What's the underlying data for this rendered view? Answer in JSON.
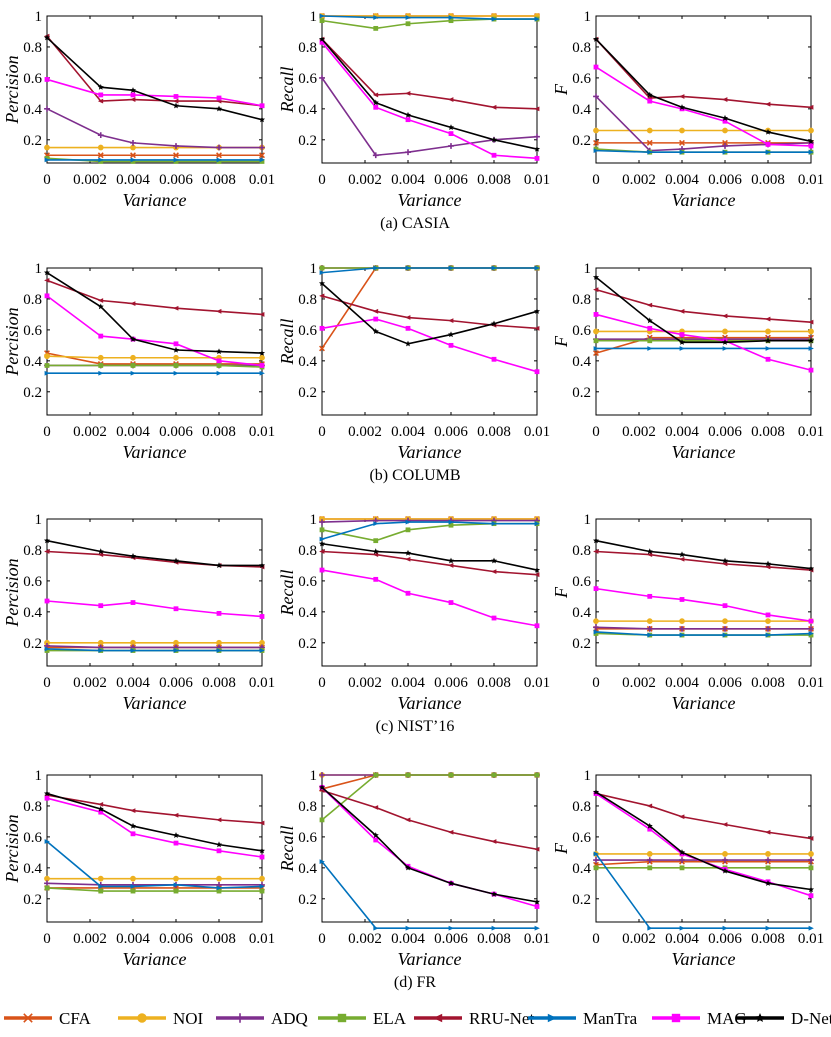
{
  "x": [
    0,
    0.0025,
    0.004,
    0.006,
    0.008,
    0.01
  ],
  "x_ticks": [
    0,
    0.002,
    0.004,
    0.006,
    0.008,
    0.01
  ],
  "x_tick_labels": [
    "0",
    "0.002",
    "0.004",
    "0.006",
    "0.008",
    "0.01"
  ],
  "y_ticks": [
    0.2,
    0.4,
    0.6,
    0.8,
    1
  ],
  "y_tick_labels": [
    "0.2",
    "0.4",
    "0.6",
    "0.8",
    "1"
  ],
  "x_label": "Variance",
  "y_labels": [
    "Percision",
    "Recall",
    "F"
  ],
  "legend": {
    "items": [
      {
        "name": "CFA",
        "color": "#D95319",
        "marker": "x"
      },
      {
        "name": "NOI",
        "color": "#EDB120",
        "marker": "o"
      },
      {
        "name": "ADQ",
        "color": "#7E2F8E",
        "marker": "+"
      },
      {
        "name": "ELA",
        "color": "#77AC30",
        "marker": "s"
      },
      {
        "name": "RRU-Net",
        "color": "#A2142F",
        "marker": "<"
      },
      {
        "name": "ManTra",
        "color": "#0072BD",
        "marker": ">"
      },
      {
        "name": "MAG",
        "color": "#FF00FF",
        "marker": "s"
      },
      {
        "name": "D-Net",
        "color": "#000000",
        "marker": "*"
      }
    ]
  },
  "chart_data": [
    {
      "caption": "(a) CASIA",
      "type": "line",
      "ylim": [
        0.05,
        1
      ],
      "panels": [
        {
          "ylabel": "Percision",
          "series": [
            [
              0.1,
              0.1,
              0.1,
              0.1,
              0.1,
              0.1
            ],
            [
              0.15,
              0.15,
              0.15,
              0.15,
              0.15,
              0.15
            ],
            [
              0.4,
              0.23,
              0.18,
              0.16,
              0.15,
              0.15
            ],
            [
              0.08,
              0.06,
              0.06,
              0.06,
              0.06,
              0.06
            ],
            [
              0.87,
              0.45,
              0.46,
              0.45,
              0.45,
              0.42
            ],
            [
              0.07,
              0.07,
              0.07,
              0.07,
              0.07,
              0.07
            ],
            [
              0.59,
              0.49,
              0.49,
              0.48,
              0.47,
              0.42
            ],
            [
              0.86,
              0.54,
              0.52,
              0.42,
              0.4,
              0.33
            ]
          ]
        },
        {
          "ylabel": "Recall",
          "series": [
            [
              1.0,
              1.0,
              1.0,
              1.0,
              1.0,
              1.0
            ],
            [
              1.0,
              1.0,
              1.0,
              1.0,
              1.0,
              1.0
            ],
            [
              0.6,
              0.1,
              0.12,
              0.16,
              0.2,
              0.22
            ],
            [
              0.97,
              0.92,
              0.95,
              0.97,
              0.98,
              0.98
            ],
            [
              0.85,
              0.49,
              0.5,
              0.46,
              0.41,
              0.4
            ],
            [
              1.0,
              0.99,
              0.99,
              0.99,
              0.98,
              0.98
            ],
            [
              0.83,
              0.41,
              0.33,
              0.24,
              0.1,
              0.08
            ],
            [
              0.85,
              0.44,
              0.36,
              0.28,
              0.2,
              0.14
            ]
          ]
        },
        {
          "ylabel": "F",
          "series": [
            [
              0.18,
              0.18,
              0.18,
              0.18,
              0.18,
              0.18
            ],
            [
              0.26,
              0.26,
              0.26,
              0.26,
              0.26,
              0.26
            ],
            [
              0.48,
              0.13,
              0.14,
              0.16,
              0.17,
              0.18
            ],
            [
              0.14,
              0.12,
              0.12,
              0.12,
              0.12,
              0.12
            ],
            [
              0.85,
              0.47,
              0.48,
              0.46,
              0.43,
              0.41
            ],
            [
              0.13,
              0.12,
              0.12,
              0.12,
              0.12,
              0.12
            ],
            [
              0.67,
              0.45,
              0.4,
              0.32,
              0.17,
              0.16
            ],
            [
              0.85,
              0.49,
              0.41,
              0.34,
              0.25,
              0.19
            ]
          ]
        }
      ]
    },
    {
      "caption": "(b) COLUMB",
      "type": "line",
      "ylim": [
        0.05,
        1
      ],
      "panels": [
        {
          "ylabel": "Percision",
          "series": [
            [
              0.45,
              0.38,
              0.38,
              0.38,
              0.38,
              0.38
            ],
            [
              0.43,
              0.42,
              0.42,
              0.42,
              0.42,
              0.42
            ],
            [
              0.37,
              0.37,
              0.37,
              0.37,
              0.37,
              0.37
            ],
            [
              0.37,
              0.37,
              0.37,
              0.37,
              0.37,
              0.36
            ],
            [
              0.92,
              0.79,
              0.77,
              0.74,
              0.72,
              0.7
            ],
            [
              0.32,
              0.32,
              0.32,
              0.32,
              0.32,
              0.32
            ],
            [
              0.82,
              0.56,
              0.54,
              0.51,
              0.4,
              0.37
            ],
            [
              0.97,
              0.75,
              0.54,
              0.47,
              0.46,
              0.45
            ]
          ]
        },
        {
          "ylabel": "Recall",
          "series": [
            [
              0.48,
              1.0,
              1.0,
              1.0,
              1.0,
              1.0
            ],
            [
              1.0,
              1.0,
              1.0,
              1.0,
              1.0,
              1.0
            ],
            [
              1.0,
              1.0,
              1.0,
              1.0,
              1.0,
              1.0
            ],
            [
              1.0,
              1.0,
              1.0,
              1.0,
              1.0,
              1.0
            ],
            [
              0.82,
              0.72,
              0.68,
              0.66,
              0.63,
              0.61
            ],
            [
              0.97,
              1.0,
              1.0,
              1.0,
              1.0,
              1.0
            ],
            [
              0.61,
              0.67,
              0.61,
              0.5,
              0.41,
              0.33
            ],
            [
              0.9,
              0.59,
              0.51,
              0.57,
              0.64,
              0.72
            ]
          ]
        },
        {
          "ylabel": "F",
          "series": [
            [
              0.45,
              0.55,
              0.55,
              0.55,
              0.55,
              0.55
            ],
            [
              0.59,
              0.59,
              0.59,
              0.59,
              0.59,
              0.59
            ],
            [
              0.54,
              0.54,
              0.54,
              0.54,
              0.54,
              0.54
            ],
            [
              0.53,
              0.53,
              0.53,
              0.53,
              0.53,
              0.53
            ],
            [
              0.86,
              0.76,
              0.72,
              0.69,
              0.67,
              0.65
            ],
            [
              0.48,
              0.48,
              0.48,
              0.48,
              0.48,
              0.48
            ],
            [
              0.7,
              0.61,
              0.57,
              0.53,
              0.41,
              0.34
            ],
            [
              0.94,
              0.66,
              0.52,
              0.52,
              0.53,
              0.53
            ]
          ]
        }
      ]
    },
    {
      "caption": "(c) NIST’16",
      "type": "line",
      "ylim": [
        0.05,
        1
      ],
      "panels": [
        {
          "ylabel": "Percision",
          "series": [
            [
              0.17,
              0.17,
              0.17,
              0.17,
              0.17,
              0.17
            ],
            [
              0.2,
              0.2,
              0.2,
              0.2,
              0.2,
              0.2
            ],
            [
              0.18,
              0.17,
              0.17,
              0.17,
              0.17,
              0.17
            ],
            [
              0.15,
              0.15,
              0.15,
              0.15,
              0.15,
              0.15
            ],
            [
              0.79,
              0.77,
              0.75,
              0.72,
              0.7,
              0.69
            ],
            [
              0.16,
              0.15,
              0.15,
              0.15,
              0.15,
              0.15
            ],
            [
              0.47,
              0.44,
              0.46,
              0.42,
              0.39,
              0.37
            ],
            [
              0.86,
              0.79,
              0.76,
              0.73,
              0.7,
              0.7
            ]
          ]
        },
        {
          "ylabel": "Recall",
          "series": [
            [
              1.0,
              1.0,
              1.0,
              1.0,
              1.0,
              1.0
            ],
            [
              1.0,
              1.0,
              1.0,
              1.0,
              1.0,
              1.0
            ],
            [
              0.98,
              0.99,
              0.99,
              0.99,
              0.99,
              0.99
            ],
            [
              0.93,
              0.86,
              0.93,
              0.96,
              0.97,
              0.97
            ],
            [
              0.79,
              0.77,
              0.74,
              0.7,
              0.66,
              0.64
            ],
            [
              0.87,
              0.97,
              0.98,
              0.98,
              0.97,
              0.97
            ],
            [
              0.67,
              0.61,
              0.52,
              0.46,
              0.36,
              0.31
            ],
            [
              0.84,
              0.79,
              0.78,
              0.73,
              0.73,
              0.67
            ]
          ]
        },
        {
          "ylabel": "F",
          "series": [
            [
              0.29,
              0.29,
              0.29,
              0.29,
              0.29,
              0.29
            ],
            [
              0.34,
              0.34,
              0.34,
              0.34,
              0.34,
              0.34
            ],
            [
              0.3,
              0.29,
              0.29,
              0.29,
              0.29,
              0.29
            ],
            [
              0.26,
              0.25,
              0.25,
              0.25,
              0.25,
              0.25
            ],
            [
              0.79,
              0.77,
              0.74,
              0.71,
              0.69,
              0.67
            ],
            [
              0.27,
              0.25,
              0.25,
              0.25,
              0.25,
              0.26
            ],
            [
              0.55,
              0.5,
              0.48,
              0.44,
              0.38,
              0.34
            ],
            [
              0.86,
              0.79,
              0.77,
              0.73,
              0.71,
              0.68
            ]
          ]
        }
      ]
    },
    {
      "caption": "(d) FR",
      "type": "line",
      "ylim": [
        0.05,
        1
      ],
      "panels": [
        {
          "ylabel": "Percision",
          "series": [
            [
              0.27,
              0.27,
              0.27,
              0.27,
              0.27,
              0.27
            ],
            [
              0.33,
              0.33,
              0.33,
              0.33,
              0.33,
              0.33
            ],
            [
              0.3,
              0.29,
              0.29,
              0.29,
              0.29,
              0.29
            ],
            [
              0.27,
              0.25,
              0.25,
              0.25,
              0.25,
              0.25
            ],
            [
              0.87,
              0.81,
              0.77,
              0.74,
              0.71,
              0.69
            ],
            [
              0.57,
              0.28,
              0.28,
              0.29,
              0.27,
              0.28
            ],
            [
              0.85,
              0.76,
              0.62,
              0.56,
              0.51,
              0.47
            ],
            [
              0.88,
              0.78,
              0.67,
              0.61,
              0.55,
              0.51
            ]
          ]
        },
        {
          "ylabel": "Recall",
          "series": [
            [
              0.91,
              1.0,
              1.0,
              1.0,
              1.0,
              1.0
            ],
            [
              1.0,
              1.0,
              1.0,
              1.0,
              1.0,
              1.0
            ],
            [
              1.0,
              1.0,
              1.0,
              1.0,
              1.0,
              1.0
            ],
            [
              0.71,
              1.0,
              1.0,
              1.0,
              1.0,
              1.0
            ],
            [
              0.9,
              0.79,
              0.71,
              0.63,
              0.57,
              0.52
            ],
            [
              0.44,
              0.01,
              0.01,
              0.01,
              0.01,
              0.01
            ],
            [
              0.92,
              0.58,
              0.41,
              0.3,
              0.23,
              0.15
            ],
            [
              0.92,
              0.61,
              0.4,
              0.3,
              0.23,
              0.18
            ]
          ]
        },
        {
          "ylabel": "F",
          "series": [
            [
              0.42,
              0.44,
              0.44,
              0.44,
              0.44,
              0.44
            ],
            [
              0.49,
              0.49,
              0.49,
              0.49,
              0.49,
              0.49
            ],
            [
              0.45,
              0.45,
              0.45,
              0.45,
              0.45,
              0.45
            ],
            [
              0.4,
              0.4,
              0.4,
              0.4,
              0.4,
              0.4
            ],
            [
              0.88,
              0.8,
              0.73,
              0.68,
              0.63,
              0.59
            ],
            [
              0.49,
              0.01,
              0.01,
              0.01,
              0.01,
              0.01
            ],
            [
              0.88,
              0.65,
              0.49,
              0.39,
              0.31,
              0.22
            ],
            [
              0.89,
              0.67,
              0.5,
              0.38,
              0.3,
              0.26
            ]
          ]
        }
      ]
    }
  ]
}
